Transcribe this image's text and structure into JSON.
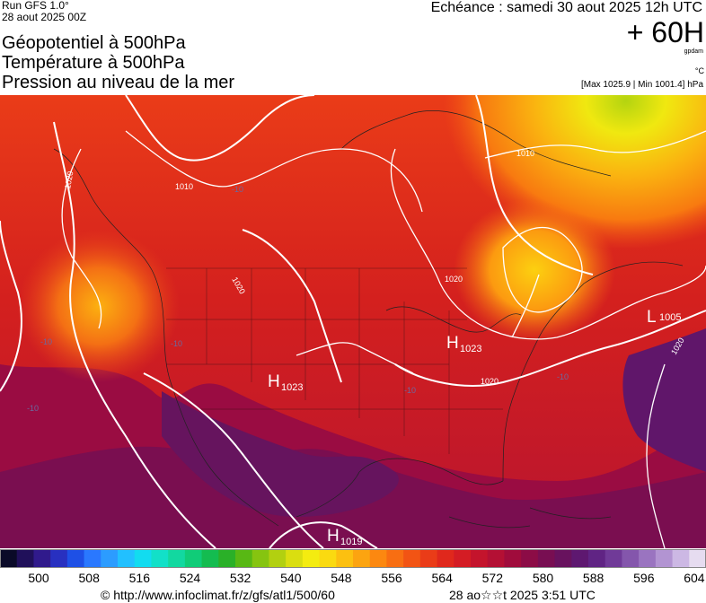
{
  "header": {
    "run": "Run GFS 1.0°",
    "run_date": "28 aout 2025 00Z",
    "titles": [
      "Géopotentiel à 500hPa",
      "Température à 500hPa",
      "Pression au niveau de la mer"
    ],
    "echeance": "Echéance : samedi 30 aout 2025 12h UTC",
    "lead": "+ 60H",
    "unit_geopotential": "gpdam",
    "unit_temperature": "°C",
    "pressure_extremes": "[Max 1025.9 | Min 1001.4] hPa"
  },
  "map": {
    "pressure_centers": [
      {
        "type": "H",
        "value": "1023"
      },
      {
        "type": "H",
        "value": "1023"
      },
      {
        "type": "H",
        "value": "1019"
      },
      {
        "type": "L",
        "value": "1005"
      }
    ],
    "isobar_labels": [
      "1010",
      "1010",
      "1020",
      "1020",
      "1020",
      "1020",
      "1020"
    ],
    "temperature_labels": [
      "-10",
      "-10",
      "-10",
      "-10",
      "-10",
      "-10"
    ]
  },
  "legend": {
    "colors": [
      "#0a0a28",
      "#20105a",
      "#301a8c",
      "#2830c0",
      "#1e50e6",
      "#2a78ff",
      "#2c9cff",
      "#22c0ff",
      "#12dcf0",
      "#12e0c8",
      "#12d8a0",
      "#10cc78",
      "#14bc50",
      "#2ab028",
      "#58b814",
      "#86c410",
      "#b2d010",
      "#dade10",
      "#f4ec10",
      "#fada10",
      "#fcc010",
      "#fca410",
      "#fc8810",
      "#f86e12",
      "#f25414",
      "#ea3c18",
      "#e0281c",
      "#d41c24",
      "#c4142c",
      "#b41034",
      "#a00c3c",
      "#8c0c46",
      "#780e52",
      "#68125e",
      "#5e1870",
      "#602484",
      "#703a98",
      "#8456ac",
      "#9a74c0",
      "#b294d2",
      "#ccb8e4",
      "#e6dcf0"
    ],
    "ticks": [
      "500",
      "508",
      "516",
      "524",
      "532",
      "540",
      "548",
      "556",
      "564",
      "572",
      "580",
      "588",
      "596",
      "604"
    ]
  },
  "footer": {
    "credit": "© http://www.infoclimat.fr/z/gfs/atl1/500/60",
    "generated": "28 ao☆☆t 2025  3:51 UTC"
  }
}
